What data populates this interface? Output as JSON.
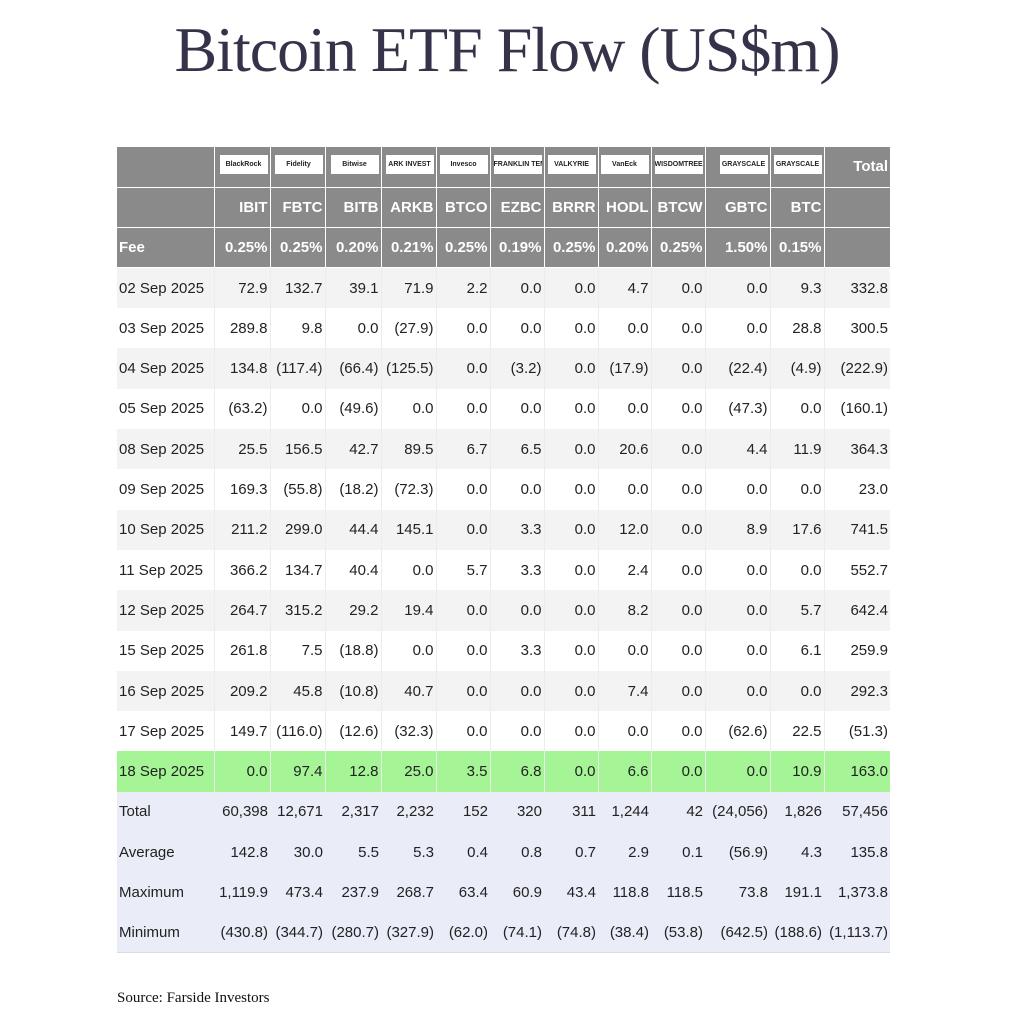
{
  "title": "Bitcoin ETF Flow (US$m)",
  "source": "Source: Farside Investors",
  "colors": {
    "header_bg": "#8a8a8a",
    "row_alt": "#f3f3f3",
    "highlight": "#a5f495",
    "summary_bg": "#eaedf8",
    "negative": "#e0332f"
  },
  "issuers": [
    "BlackRock",
    "Fidelity",
    "Bitwise",
    "ARK INVEST",
    "Invesco",
    "FRANKLIN TEMPLETON",
    "VALKYRIE",
    "VanEck",
    "WISDOMTREE",
    "GRAYSCALE",
    "GRAYSCALE"
  ],
  "total_header": "Total",
  "tickers": [
    "IBIT",
    "FBTC",
    "BITB",
    "ARKB",
    "BTCO",
    "EZBC",
    "BRRR",
    "HODL",
    "BTCW",
    "GBTC",
    "BTC"
  ],
  "fee_label": "Fee",
  "fees": [
    "0.25%",
    "0.25%",
    "0.20%",
    "0.21%",
    "0.25%",
    "0.19%",
    "0.25%",
    "0.20%",
    "0.25%",
    "1.50%",
    "0.15%"
  ],
  "rows": [
    {
      "date": "02 Sep 2025",
      "values": [
        "72.9",
        "132.7",
        "39.1",
        "71.9",
        "2.2",
        "0.0",
        "0.0",
        "4.7",
        "0.0",
        "0.0",
        "9.3",
        "332.8"
      ]
    },
    {
      "date": "03 Sep 2025",
      "values": [
        "289.8",
        "9.8",
        "0.0",
        "(27.9)",
        "0.0",
        "0.0",
        "0.0",
        "0.0",
        "0.0",
        "0.0",
        "28.8",
        "300.5"
      ]
    },
    {
      "date": "04 Sep 2025",
      "values": [
        "134.8",
        "(117.4)",
        "(66.4)",
        "(125.5)",
        "0.0",
        "(3.2)",
        "0.0",
        "(17.9)",
        "0.0",
        "(22.4)",
        "(4.9)",
        "(222.9)"
      ]
    },
    {
      "date": "05 Sep 2025",
      "values": [
        "(63.2)",
        "0.0",
        "(49.6)",
        "0.0",
        "0.0",
        "0.0",
        "0.0",
        "0.0",
        "0.0",
        "(47.3)",
        "0.0",
        "(160.1)"
      ]
    },
    {
      "date": "08 Sep 2025",
      "values": [
        "25.5",
        "156.5",
        "42.7",
        "89.5",
        "6.7",
        "6.5",
        "0.0",
        "20.6",
        "0.0",
        "4.4",
        "11.9",
        "364.3"
      ]
    },
    {
      "date": "09 Sep 2025",
      "values": [
        "169.3",
        "(55.8)",
        "(18.2)",
        "(72.3)",
        "0.0",
        "0.0",
        "0.0",
        "0.0",
        "0.0",
        "0.0",
        "0.0",
        "23.0"
      ]
    },
    {
      "date": "10 Sep 2025",
      "values": [
        "211.2",
        "299.0",
        "44.4",
        "145.1",
        "0.0",
        "3.3",
        "0.0",
        "12.0",
        "0.0",
        "8.9",
        "17.6",
        "741.5"
      ]
    },
    {
      "date": "11 Sep 2025",
      "values": [
        "366.2",
        "134.7",
        "40.4",
        "0.0",
        "5.7",
        "3.3",
        "0.0",
        "2.4",
        "0.0",
        "0.0",
        "0.0",
        "552.7"
      ]
    },
    {
      "date": "12 Sep 2025",
      "values": [
        "264.7",
        "315.2",
        "29.2",
        "19.4",
        "0.0",
        "0.0",
        "0.0",
        "8.2",
        "0.0",
        "0.0",
        "5.7",
        "642.4"
      ]
    },
    {
      "date": "15 Sep 2025",
      "values": [
        "261.8",
        "7.5",
        "(18.8)",
        "0.0",
        "0.0",
        "3.3",
        "0.0",
        "0.0",
        "0.0",
        "0.0",
        "6.1",
        "259.9"
      ]
    },
    {
      "date": "16 Sep 2025",
      "values": [
        "209.2",
        "45.8",
        "(10.8)",
        "40.7",
        "0.0",
        "0.0",
        "0.0",
        "7.4",
        "0.0",
        "0.0",
        "0.0",
        "292.3"
      ]
    },
    {
      "date": "17 Sep 2025",
      "values": [
        "149.7",
        "(116.0)",
        "(12.6)",
        "(32.3)",
        "0.0",
        "0.0",
        "0.0",
        "0.0",
        "0.0",
        "(62.6)",
        "22.5",
        "(51.3)"
      ]
    },
    {
      "date": "18 Sep 2025",
      "values": [
        "0.0",
        "97.4",
        "12.8",
        "25.0",
        "3.5",
        "6.8",
        "0.0",
        "6.6",
        "0.0",
        "0.0",
        "10.9",
        "163.0"
      ],
      "highlight": true
    }
  ],
  "summary": [
    {
      "label": "Total",
      "values": [
        "60,398",
        "12,671",
        "2,317",
        "2,232",
        "152",
        "320",
        "311",
        "1,244",
        "42",
        "(24,056)",
        "1,826",
        "57,456"
      ]
    },
    {
      "label": "Average",
      "values": [
        "142.8",
        "30.0",
        "5.5",
        "5.3",
        "0.4",
        "0.8",
        "0.7",
        "2.9",
        "0.1",
        "(56.9)",
        "4.3",
        "135.8"
      ]
    },
    {
      "label": "Maximum",
      "values": [
        "1,119.9",
        "473.4",
        "237.9",
        "268.7",
        "63.4",
        "60.9",
        "43.4",
        "118.8",
        "118.5",
        "73.8",
        "191.1",
        "1,373.8"
      ]
    },
    {
      "label": "Minimum",
      "values": [
        "(430.8)",
        "(344.7)",
        "(280.7)",
        "(327.9)",
        "(62.0)",
        "(74.1)",
        "(74.8)",
        "(38.4)",
        "(53.8)",
        "(642.5)",
        "(188.6)",
        "(1,113.7)"
      ]
    }
  ]
}
